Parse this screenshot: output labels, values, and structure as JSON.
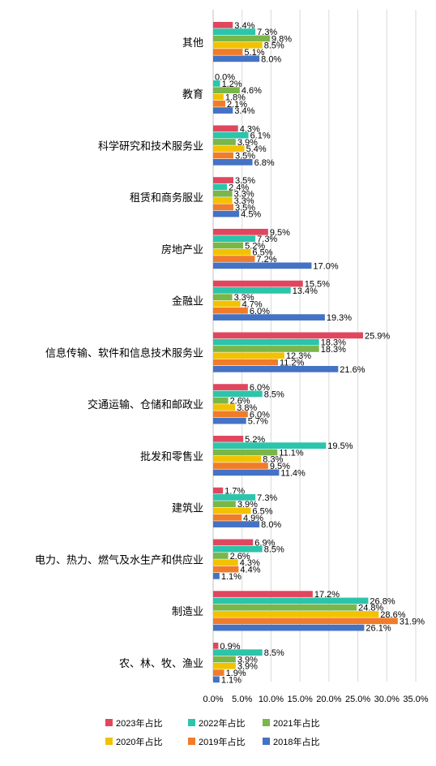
{
  "chart_data": {
    "type": "bar",
    "orientation": "horizontal",
    "title": "",
    "xlabel": "",
    "ylabel": "",
    "xlim": [
      0,
      35
    ],
    "x_ticks": [
      "0.0%",
      "5.0%",
      "10.0%",
      "15.0%",
      "20.0%",
      "25.0%",
      "30.0%",
      "35.0%"
    ],
    "grid": "vertical",
    "legend_position": "bottom",
    "categories": [
      "其他",
      "教育",
      "科学研究和技术服务业",
      "租赁和商务服业",
      "房地产业",
      "金融业",
      "信息传输、软件和信息技术服务业",
      "交通运输、仓储和邮政业",
      "批发和零售业",
      "建筑业",
      "电力、热力、燃气及水生产和供应业",
      "制造业",
      "农、林、牧、渔业"
    ],
    "series": [
      {
        "name": "2023年占比",
        "color": "#e0475f",
        "values": [
          3.4,
          0.0,
          4.3,
          3.5,
          9.5,
          15.5,
          25.9,
          6.0,
          5.2,
          1.7,
          6.9,
          17.2,
          0.9
        ],
        "labels": [
          "3.4%",
          "0.0%",
          "4.3%",
          "3.5%",
          "9.5%",
          "15.5%",
          "25.9%",
          "6.0%",
          "5.2%",
          "1.7%",
          "6.9%",
          "17.2%",
          "0.9%"
        ]
      },
      {
        "name": "2022年占比",
        "color": "#2cc4aa",
        "values": [
          7.3,
          1.2,
          6.1,
          2.4,
          7.3,
          13.4,
          18.3,
          8.5,
          19.5,
          7.3,
          8.5,
          26.8,
          8.5
        ],
        "labels": [
          "7.3%",
          "1.2%",
          "6.1%",
          "2.4%",
          "7.3%",
          "13.4%",
          "18.3%",
          "8.5%",
          "19.5%",
          "7.3%",
          "8.5%",
          "26.8%",
          "8.5%"
        ]
      },
      {
        "name": "2021年占比",
        "color": "#7ab648",
        "values": [
          9.8,
          4.6,
          3.9,
          3.3,
          5.2,
          3.3,
          18.3,
          2.6,
          11.1,
          3.9,
          2.6,
          24.8,
          3.9
        ],
        "labels": [
          "9.8%",
          "4.6%",
          "3.9%",
          "3.3%",
          "5.2%",
          "3.3%",
          "18.3%",
          "2.6%",
          "11.1%",
          "3.9%",
          "2.6%",
          "24.8%",
          "3.9%"
        ]
      },
      {
        "name": "2020年占比",
        "color": "#f2c200",
        "values": [
          8.5,
          1.8,
          5.4,
          3.3,
          6.5,
          4.7,
          12.3,
          3.8,
          8.3,
          6.5,
          4.3,
          28.6,
          3.9
        ],
        "labels": [
          "8.5%",
          "1.8%",
          "5.4%",
          "3.3%",
          "6.5%",
          "4.7%",
          "12.3%",
          "3.8%",
          "8.3%",
          "6.5%",
          "4.3%",
          "28.6%",
          "3.9%"
        ]
      },
      {
        "name": "2019年占比",
        "color": "#f07c2a",
        "values": [
          5.1,
          2.1,
          3.5,
          3.5,
          7.2,
          6.0,
          11.2,
          6.0,
          9.5,
          4.9,
          4.4,
          31.9,
          1.9
        ],
        "labels": [
          "5.1%",
          "2.1%",
          "3.5%",
          "3.5%",
          "7.2%",
          "6.0%",
          "11.2%",
          "6.0%",
          "9.5%",
          "4.9%",
          "4.4%",
          "31.9%",
          "1.9%"
        ]
      },
      {
        "name": "2018年占比",
        "color": "#4472c4",
        "values": [
          8.0,
          3.4,
          6.8,
          4.5,
          17.0,
          19.3,
          21.6,
          5.7,
          11.4,
          8.0,
          1.1,
          26.1,
          1.1
        ],
        "labels": [
          "8.0%",
          "3.4%",
          "6.8%",
          "4.5%",
          "17.0%",
          "19.3%",
          "21.6%",
          "5.7%",
          "11.4%",
          "8.0%",
          "1.1%",
          "26.1%",
          "1.1%"
        ]
      }
    ]
  }
}
